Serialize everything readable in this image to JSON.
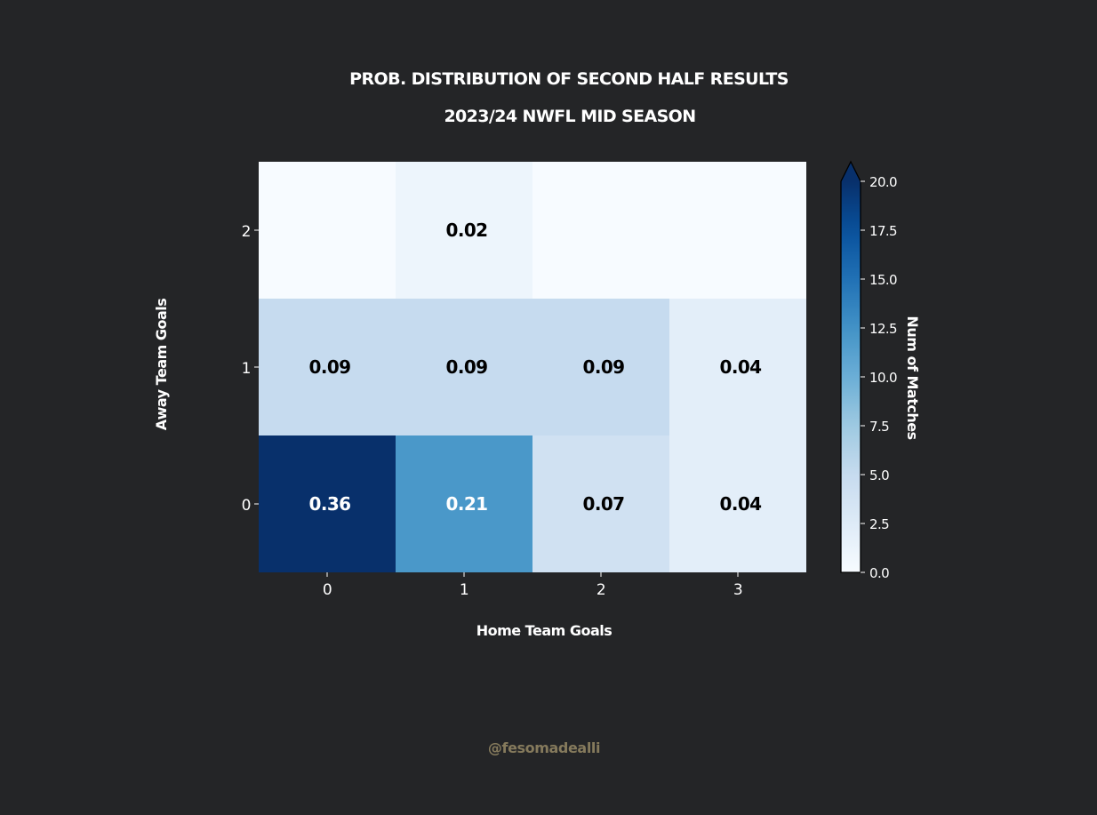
{
  "chart_data": {
    "type": "heatmap",
    "title": "PROB. DISTRIBUTION OF SECOND HALF RESULTS",
    "subtitle": "2023/24 NWFL MID SEASON",
    "xlabel": "Home Team Goals",
    "ylabel": "Away Team Goals",
    "x_categories": [
      "0",
      "1",
      "2",
      "3"
    ],
    "y_categories": [
      "0",
      "1",
      "2"
    ],
    "cells": [
      {
        "x": "0",
        "y": "0",
        "label": "0.36",
        "count": 20
      },
      {
        "x": "1",
        "y": "0",
        "label": "0.21",
        "count": 12
      },
      {
        "x": "2",
        "y": "0",
        "label": "0.07",
        "count": 4
      },
      {
        "x": "3",
        "y": "0",
        "label": "0.04",
        "count": 2
      },
      {
        "x": "0",
        "y": "1",
        "label": "0.09",
        "count": 5
      },
      {
        "x": "1",
        "y": "1",
        "label": "0.09",
        "count": 5
      },
      {
        "x": "2",
        "y": "1",
        "label": "0.09",
        "count": 5
      },
      {
        "x": "3",
        "y": "1",
        "label": "0.04",
        "count": 2
      },
      {
        "x": "0",
        "y": "2",
        "label": "",
        "count": 0
      },
      {
        "x": "1",
        "y": "2",
        "label": "0.02",
        "count": 1
      },
      {
        "x": "2",
        "y": "2",
        "label": "",
        "count": 0
      },
      {
        "x": "3",
        "y": "2",
        "label": "",
        "count": 0
      }
    ],
    "colorbar": {
      "label": "Num of Matches",
      "min": 0,
      "max": 20,
      "ticks": [
        "0.0",
        "2.5",
        "5.0",
        "7.5",
        "10.0",
        "12.5",
        "15.0",
        "17.5",
        "20.0"
      ],
      "extend": "max",
      "colormap": "Blues"
    },
    "grid": false,
    "legend": "colorbar-right"
  },
  "credit": "@fesomadealli",
  "colors": {
    "background": "#242527",
    "text": "#ffffff",
    "credit": "#857a5c"
  }
}
